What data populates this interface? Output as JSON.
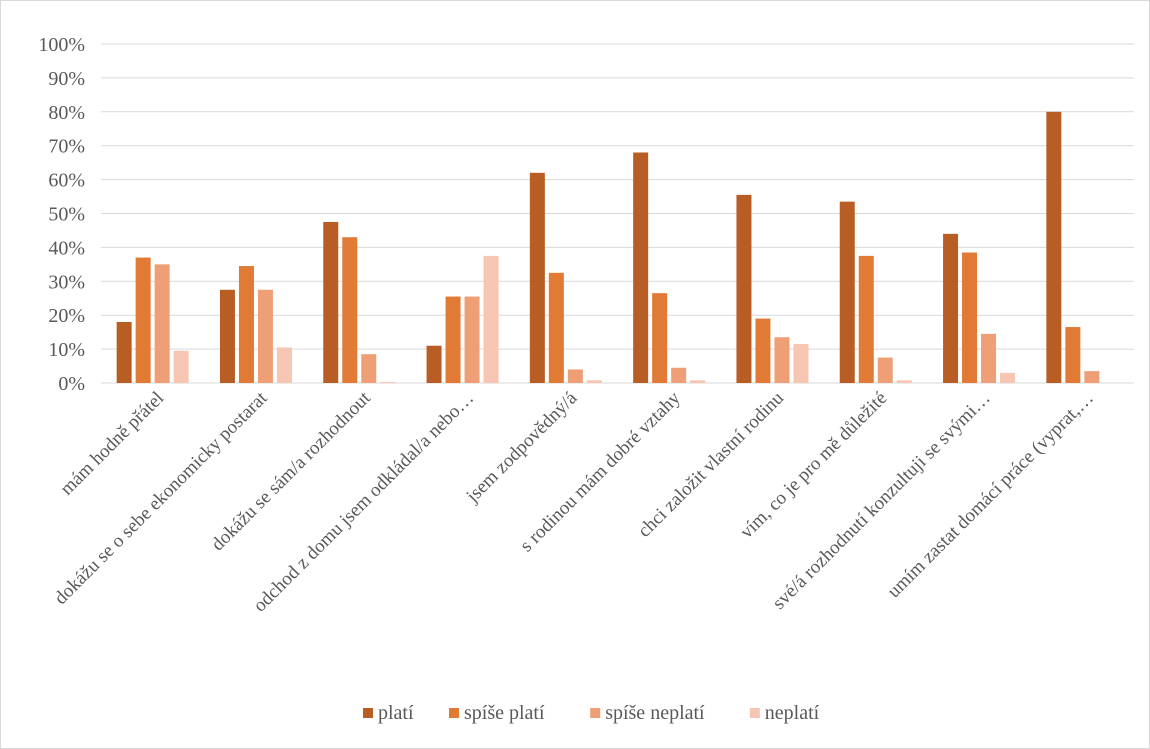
{
  "chart_data": {
    "type": "bar",
    "categories": [
      "mám hodně přátel",
      "dokážu se o sebe ekonomicky postarat",
      "dokážu se sám/a rozhodnout",
      "odchod z domu jsem odkládal/a nebo…",
      "jsem zodpovědný/á",
      "s rodinou mám dobré vztahy",
      "chci založit vlastní rodinu",
      "vím, co je pro mě důležité",
      "své/á rozhodnutí konzultuji se svými…",
      "umím zastat domácí práce (vyprat,…"
    ],
    "series": [
      {
        "name": "platí",
        "color": "#b85e25",
        "values": [
          18,
          27.5,
          47.5,
          11,
          62,
          68,
          55.5,
          53.5,
          44,
          80
        ]
      },
      {
        "name": "spíše platí",
        "color": "#e07a35",
        "values": [
          37,
          34.5,
          43,
          25.5,
          32.5,
          26.5,
          19,
          37.5,
          38.5,
          16.5
        ]
      },
      {
        "name": "spíše neplatí",
        "color": "#ee9f75",
        "values": [
          35,
          27.5,
          8.5,
          25.5,
          4,
          4.5,
          13.5,
          7.5,
          14.5,
          3.5
        ]
      },
      {
        "name": "neplatí",
        "color": "#f6c6b2",
        "values": [
          9.5,
          10.5,
          0.3,
          37.5,
          0.8,
          0.8,
          11.5,
          0.8,
          3,
          0
        ]
      }
    ],
    "y_ticks": [
      "0%",
      "10%",
      "20%",
      "30%",
      "40%",
      "50%",
      "60%",
      "70%",
      "80%",
      "90%",
      "100%"
    ],
    "ylim": [
      0,
      100
    ],
    "grid": true,
    "legend_position": "bottom",
    "gridline_color": "#d9d9d9"
  }
}
